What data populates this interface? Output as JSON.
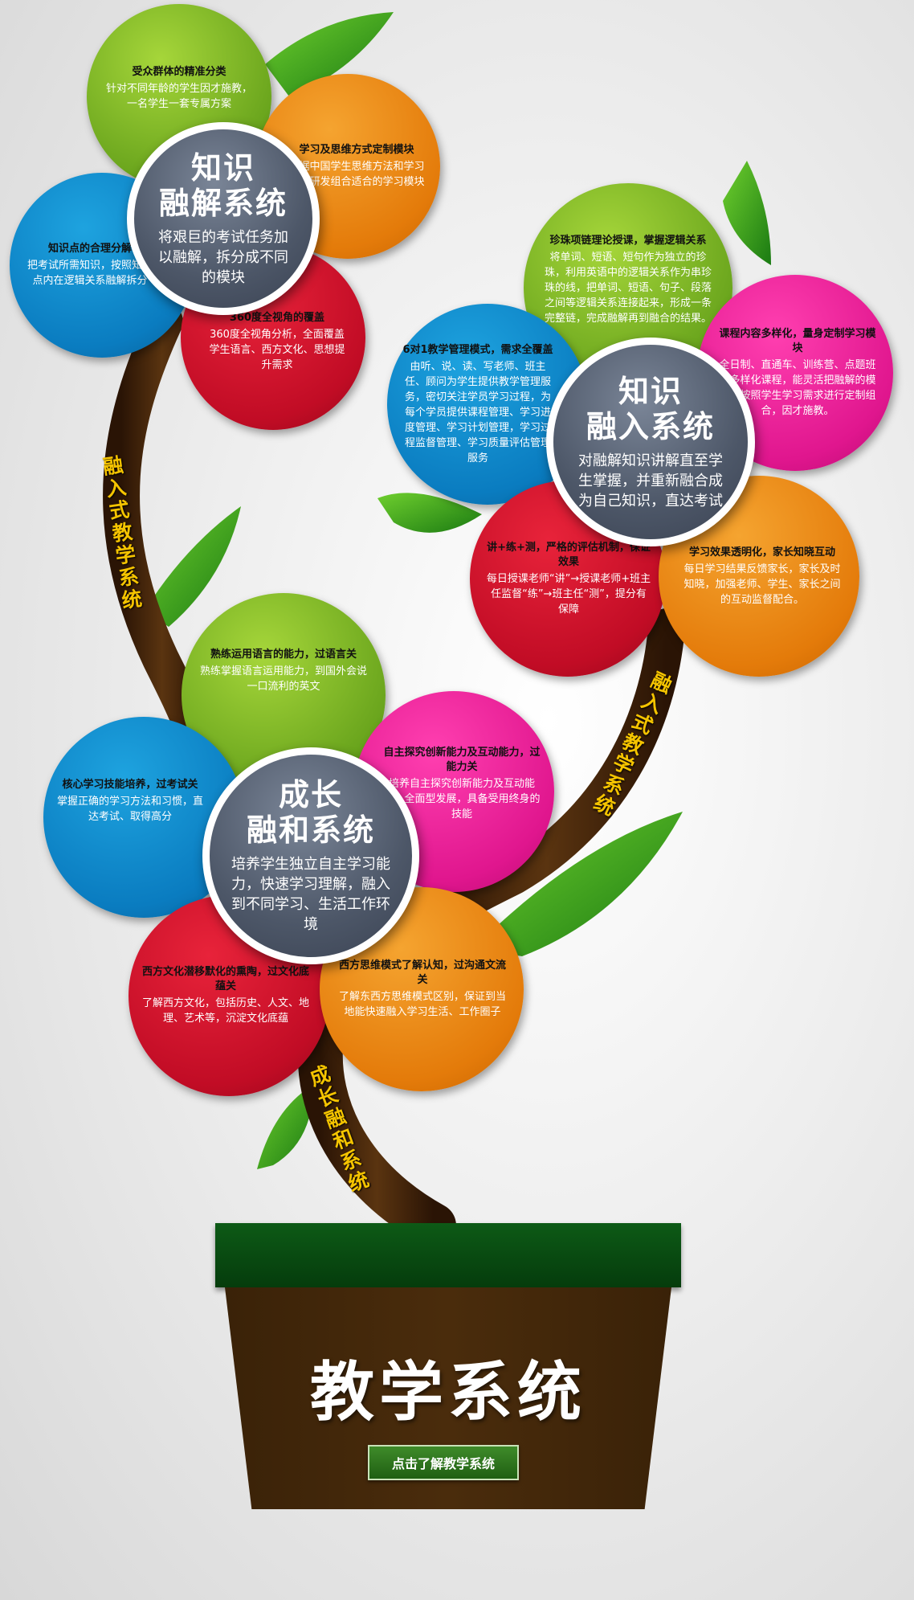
{
  "pot": {
    "title": "教学系统",
    "button_label": "点击了解教学系统"
  },
  "branches": {
    "left": "融入式教学系统",
    "right": "融入式教学系统",
    "bottom": "成长融和系统"
  },
  "flowers": [
    {
      "core": {
        "title_1": "知识",
        "title_2": "融解系统",
        "desc": "将艰巨的考试任务加以融解，拆分成不同的模块"
      },
      "petals": [
        {
          "title": "受众群体的精准分类",
          "desc": "针对不同年龄的学生因才施教，一名学生一套专属方案"
        },
        {
          "title": "学习及思维方式定制模块",
          "desc": "根据中国学生思维方法和学习习惯研发组合适合的学习模块"
        },
        {
          "title": "知识点的合理分解",
          "desc": "把考试所需知识，按照知识点内在逻辑关系融解拆分"
        },
        {
          "title": "360度全视角的覆盖",
          "desc": "360度全视角分析，全面覆盖学生语言、西方文化、思想提升需求"
        }
      ]
    },
    {
      "core": {
        "title_1": "知识",
        "title_2": "融入系统",
        "desc": "对融解知识讲解直至学生掌握，并重新融合成为自己知识，直达考试"
      },
      "petals": [
        {
          "title": "珍珠项链理论授课，掌握逻辑关系",
          "desc": "将单词、短语、短句作为独立的珍珠，利用英语中的逻辑关系作为串珍珠的线，把单词、短语、句子、段落之间等逻辑关系连接起来，形成一条完整链，完成融解再到融合的结果。"
        },
        {
          "title": "课程内容多样化，量身定制学习模块",
          "desc": "全日制、直通车、训练营、点题班等多样化课程，能灵活把融解的模块，按照学生学习需求进行定制组合，因才施教。"
        },
        {
          "title": "6对1教学管理模式，需求全覆盖",
          "desc": "由听、说、读、写老师、班主任、顾问为学生提供教学管理服务，密切关注学员学习过程，为每个学员提供课程管理、学习进度管理、学习计划管理，学习过程监督管理、学习质量评估管理服务"
        },
        {
          "title": "讲+练+测，严格的评估机制，保证效果",
          "desc": "每日授课老师“讲”→授课老师+班主任监督“练”→班主任“测”，提分有保障"
        },
        {
          "title": "学习效果透明化，家长知晓互动",
          "desc": "每日学习结果反馈家长，家长及时知晓，加强老师、学生、家长之间的互动监督配合。"
        }
      ]
    },
    {
      "core": {
        "title_1": "成长",
        "title_2": "融和系统",
        "desc": "培养学生独立自主学习能力，快速学习理解，融入到不同学习、生活工作环境"
      },
      "petals": [
        {
          "title": "熟练运用语言的能力，过语言关",
          "desc": "熟练掌握语言运用能力，到国外会说一口流利的英文"
        },
        {
          "title": "核心学习技能培养，过考试关",
          "desc": "掌握正确的学习方法和习惯，直达考试、取得高分"
        },
        {
          "title": "自主探究创新能力及互动能力，过能力关",
          "desc": "培养自主探究创新能力及互动能力，全面型发展，具备受用终身的技能"
        },
        {
          "title": "西方文化潜移默化的熏陶，过文化底蕴关",
          "desc": "了解西方文化，包括历史、人文、地理、艺术等，沉淀文化底蕴"
        },
        {
          "title": "西方思维模式了解认知，过沟通文流关",
          "desc": "了解东西方思维模式区别，保证到当地能快速融入学习生活、工作圈子"
        }
      ]
    }
  ]
}
